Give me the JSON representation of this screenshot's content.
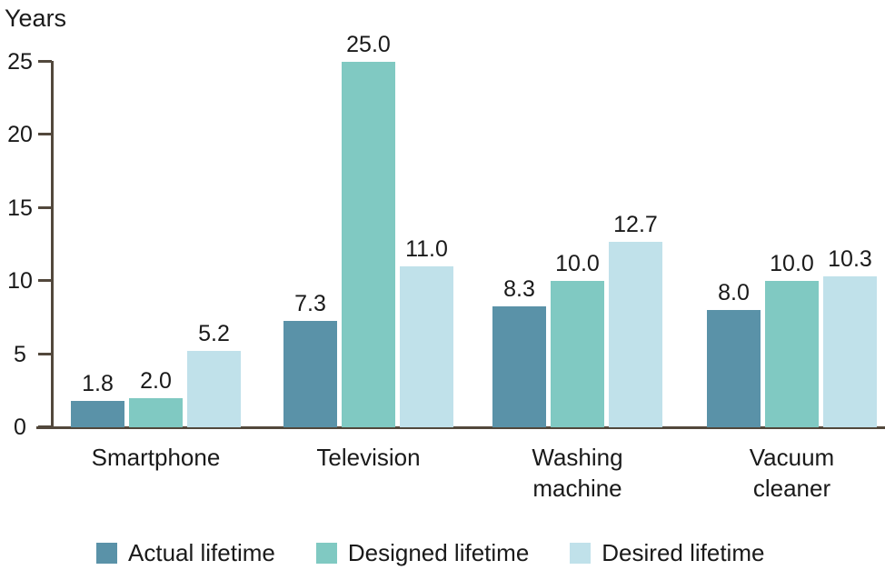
{
  "chart_data": {
    "type": "bar",
    "ylabel": "Years",
    "ylim": [
      0,
      25
    ],
    "yticks": [
      0,
      5,
      10,
      15,
      20,
      25
    ],
    "grid": false,
    "legend_position": "bottom",
    "categories": [
      "Smartphone",
      "Television",
      "Washing machine",
      "Vacuum cleaner"
    ],
    "category_lines": [
      [
        "Smartphone"
      ],
      [
        "Television"
      ],
      [
        "Washing",
        "machine"
      ],
      [
        "Vacuum",
        "cleaner"
      ]
    ],
    "series": [
      {
        "name": "Actual lifetime",
        "color": "#5A92A8",
        "values": [
          1.8,
          7.3,
          8.3,
          8.0
        ]
      },
      {
        "name": "Designed lifetime",
        "color": "#80C9C2",
        "values": [
          2.0,
          25.0,
          10.0,
          10.0
        ]
      },
      {
        "name": "Desired lifetime",
        "color": "#C0E1EA",
        "values": [
          5.2,
          11.0,
          12.7,
          10.3
        ]
      }
    ],
    "value_labels": [
      [
        "1.8",
        "2.0",
        "5.2"
      ],
      [
        "7.3",
        "25.0",
        "11.0"
      ],
      [
        "8.3",
        "10.0",
        "12.7"
      ],
      [
        "8.0",
        "10.0",
        "10.3"
      ]
    ],
    "colors": {
      "axis": "#52483C",
      "text": "#1A1A1A"
    }
  }
}
